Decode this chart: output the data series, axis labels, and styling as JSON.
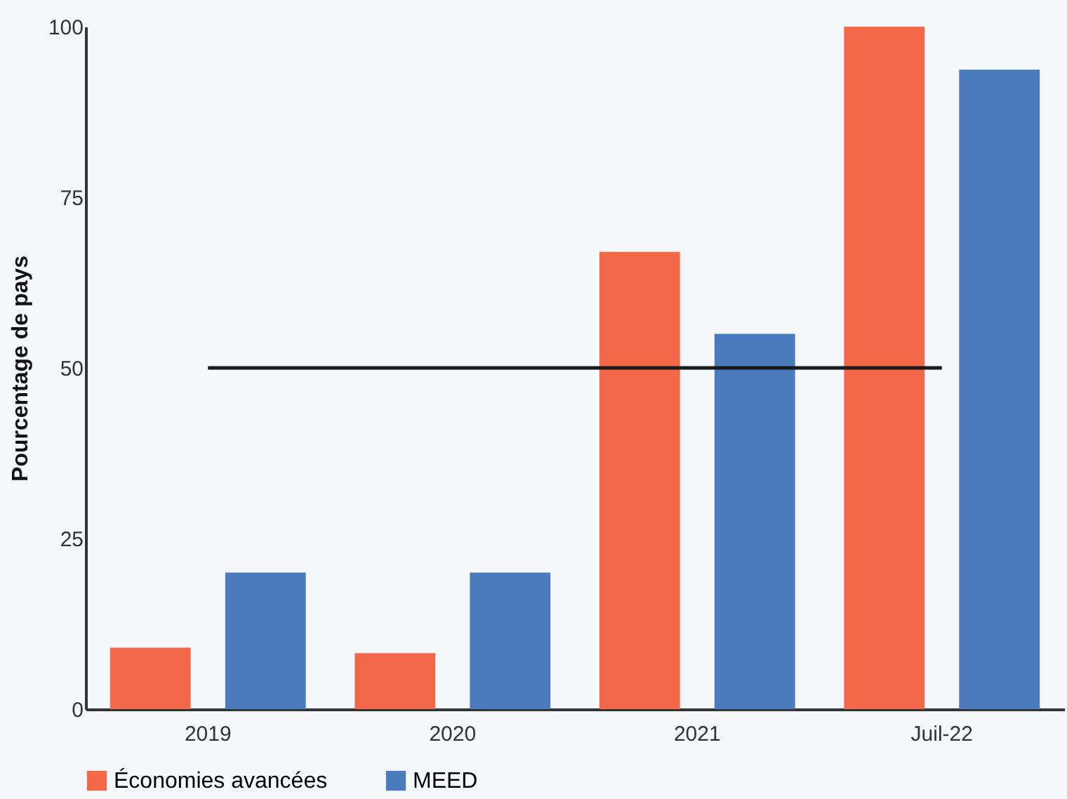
{
  "chart_data": {
    "type": "bar",
    "ylabel": "Pourcentage de pays",
    "categories": [
      "2019",
      "2020",
      "2021",
      "Juil-22"
    ],
    "series": [
      {
        "name": "Économies avancées",
        "color": "#f26849",
        "values": [
          9,
          8.2,
          67,
          100
        ]
      },
      {
        "name": "MEED",
        "color": "#4a7bbd",
        "values": [
          20,
          20,
          55,
          93.7
        ]
      }
    ],
    "ylim": [
      0,
      100
    ],
    "yticks": [
      0,
      25,
      50,
      75,
      100
    ],
    "grid": false,
    "legend": "bottom",
    "ref_lines": [
      {
        "axis": "y",
        "value": 50,
        "color": "#1a1a1a"
      }
    ]
  }
}
